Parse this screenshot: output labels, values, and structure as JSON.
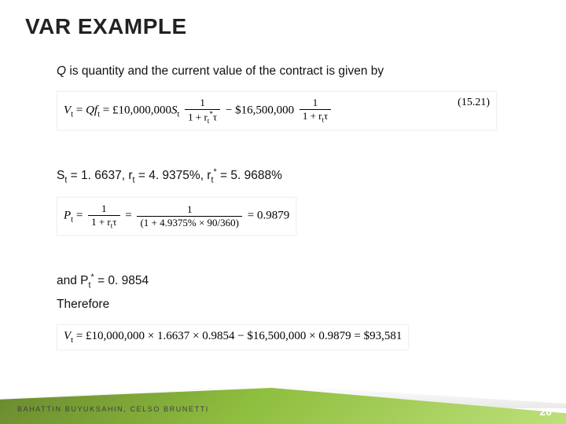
{
  "title": "VAR EXAMPLE",
  "intro": "Q is quantity and the current value of the contract is given by",
  "eq1": {
    "lhs_var": "V",
    "lhs_sub": "t",
    "term1_pre": " = Qf",
    "term1_sub": "t",
    "term1_mid": " = £10,000,000S",
    "term1_sub2": "t",
    "frac1_num": "1",
    "frac1_den_pre": "1 + r",
    "frac1_den_sub": "t",
    "frac1_den_sup": "*",
    "frac1_den_post": "τ",
    "minus": " − $16,500,000 ",
    "frac2_num": "1",
    "frac2_den_pre": "1 + r",
    "frac2_den_sub": "t",
    "frac2_den_post": "τ",
    "eqnum": "(15.21)"
  },
  "vals_line": {
    "pre": "S",
    "s1": "t",
    "a": " = 1. 6637, r",
    "s2": "t",
    "b": " = 4. 9375%, r",
    "s3": "t",
    "sup": "*",
    "c": " = 5. 9688%"
  },
  "eq2": {
    "lhs": "P",
    "lhs_sub": "t",
    "eq": " = ",
    "f1_num": "1",
    "f1_den_pre": "1 + r",
    "f1_den_sub": "t",
    "f1_den_post": "τ",
    "mid": " = ",
    "f2_num": "1",
    "f2_den": "(1 + 4.9375% × 90/360)",
    "rhs": " = 0.9879"
  },
  "pstar_line": {
    "pre": "and P",
    "sub": "t",
    "sup": "*",
    "post": " = 0. 9854"
  },
  "therefore": "Therefore",
  "eq3": {
    "lhs": "V",
    "lhs_sub": "t",
    "body": " = £10,000,000 × 1.6637 × 0.9854 − $16,500,000 × 0.9879 = $93,581"
  },
  "authors": "BAHATTIN BUYUKSAHIN, CELSO BRUNETTI",
  "page": "20",
  "style": {
    "bg": "#ffffff",
    "title_fontsize": 28,
    "body_fontsize": 15.5,
    "eq_font": "Georgia",
    "footer_gradient": [
      "#6a8a2e",
      "#8fbf3f",
      "#bde07a"
    ],
    "page_num_color": "#ffffff"
  }
}
